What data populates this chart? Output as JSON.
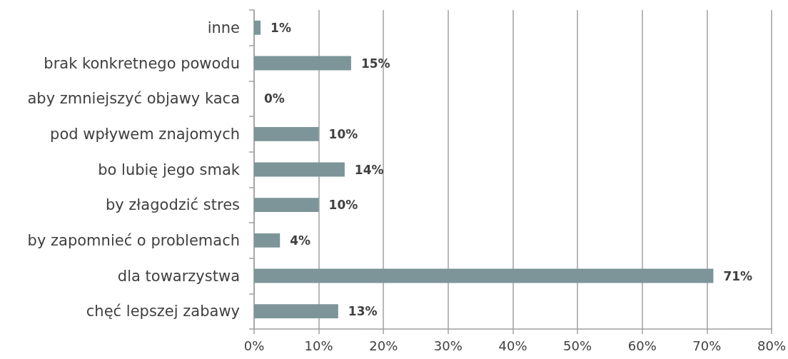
{
  "chart_data": {
    "type": "bar",
    "orientation": "horizontal",
    "categories": [
      "inne",
      "brak konkretnego powodu",
      "aby zmniejszyć objawy kaca",
      "pod wpływem znajomych",
      "bo lubię jego smak",
      "by złagodzić stres",
      "by zapomnieć o problemach",
      "dla towarzystwa",
      "chęć lepszej zabawy"
    ],
    "values": [
      1,
      15,
      0,
      10,
      14,
      10,
      4,
      71,
      13
    ],
    "value_labels": [
      "1%",
      "15%",
      "0%",
      "10%",
      "14%",
      "10%",
      "4%",
      "71%",
      "13%"
    ],
    "color": "#7d9598",
    "xlim": [
      0,
      80
    ],
    "xticks": [
      {
        "value": 0,
        "label": "0%"
      },
      {
        "value": 10,
        "label": "10%"
      },
      {
        "value": 20,
        "label": "20%"
      },
      {
        "value": 30,
        "label": "30%"
      },
      {
        "value": 40,
        "label": "40%"
      },
      {
        "value": 50,
        "label": "50%"
      },
      {
        "value": 60,
        "label": "60%"
      },
      {
        "value": 70,
        "label": "70%"
      },
      {
        "value": 80,
        "label": "80%"
      }
    ],
    "grid": "x"
  }
}
